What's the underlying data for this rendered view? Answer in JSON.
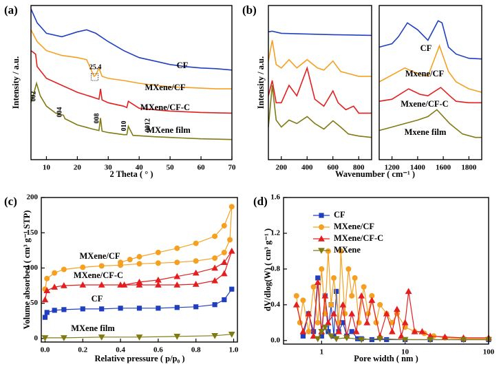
{
  "chart_data": [
    {
      "type": "line",
      "panel_label": "(a)",
      "xlabel": "2 Theta ( ° )",
      "ylabel": "Intensity / a.u.",
      "xlim": [
        5,
        70
      ],
      "xticks": [
        10,
        20,
        30,
        40,
        50,
        60,
        70
      ],
      "ylim": [
        0,
        222
      ],
      "series": [
        {
          "name": "CF",
          "color": "#1f3fbf",
          "x": [
            5,
            7,
            10,
            15,
            20,
            23,
            26,
            30,
            35,
            40,
            45,
            50,
            55,
            60,
            65,
            70
          ],
          "values": [
            217,
            197,
            182,
            177,
            184,
            187,
            182,
            170,
            157,
            147,
            142,
            137,
            134,
            132,
            131,
            129
          ]
        },
        {
          "name": "MXene/CF",
          "color": "#f5a020",
          "x": [
            5,
            7,
            10,
            15,
            20,
            23,
            25.4,
            26,
            27,
            28,
            30,
            35,
            40,
            45,
            50,
            55,
            60,
            65,
            70
          ],
          "values": [
            187,
            170,
            157,
            150,
            147,
            144,
            120,
            122,
            132,
            120,
            117,
            114,
            110,
            107,
            105,
            104,
            103,
            102,
            102
          ]
        },
        {
          "name": "MXene/CF-C",
          "color": "#e41e1e",
          "x": [
            5,
            6.5,
            7,
            10,
            15,
            20,
            25,
            27,
            27.5,
            28,
            30,
            35,
            36,
            36.5,
            40,
            45,
            50,
            60,
            70
          ],
          "values": [
            157,
            152,
            134,
            117,
            107,
            97,
            90,
            87,
            102,
            86,
            82,
            77,
            75,
            84,
            74,
            72,
            70,
            68,
            67
          ]
        },
        {
          "name": "MXene film",
          "color": "#7f7a12",
          "x": [
            5,
            6,
            6.8,
            8,
            10,
            13,
            15.5,
            16,
            20,
            25,
            27,
            27.5,
            28,
            30,
            35,
            36,
            36.5,
            38,
            45,
            50,
            60,
            70
          ],
          "values": [
            82,
            97,
            110,
            92,
            77,
            67,
            64,
            59,
            50,
            44,
            42,
            60,
            41,
            39,
            36,
            36,
            48,
            35,
            33,
            32,
            30,
            29
          ]
        }
      ],
      "annotations": [
        {
          "text": "002",
          "x": 7
        },
        {
          "text": "004",
          "x": 15.5
        },
        {
          "text": "008",
          "x": 27.5
        },
        {
          "text": "010",
          "x": 36.3
        },
        {
          "text": "0012",
          "x": 44
        },
        {
          "text": "25.4",
          "x": 25.4
        }
      ]
    },
    {
      "type": "line",
      "panel_label": "(b)",
      "xlabel": "Wavenumber ( cm⁻¹ )",
      "ylabel": "Intensity / a.u.",
      "panels": [
        {
          "xlim": [
            100,
            900
          ],
          "xticks": [
            200,
            400,
            600,
            800
          ],
          "ylim": [
            0,
            222
          ],
          "series": [
            {
              "color": "#1f3fbf",
              "x": [
                100,
                130,
                200,
                400,
                600,
                900
              ],
              "values": [
                184,
                185,
                182,
                181,
                180,
                179
              ]
            },
            {
              "color": "#f5a020",
              "x": [
                100,
                130,
                160,
                200,
                260,
                320,
                400,
                480,
                530,
                600,
                660,
                720,
                800,
                900
              ],
              "values": [
                142,
                172,
                137,
                132,
                144,
                132,
                144,
                132,
                129,
                142,
                127,
                124,
                120,
                120
              ]
            },
            {
              "color": "#e41e1e",
              "x": [
                100,
                130,
                160,
                200,
                260,
                320,
                400,
                460,
                530,
                600,
                640,
                700,
                760,
                800,
                900
              ],
              "values": [
                92,
                114,
                82,
                82,
                107,
                92,
                132,
                87,
                77,
                99,
                82,
                72,
                77,
                67,
                67
              ]
            },
            {
              "color": "#7f7a12",
              "x": [
                100,
                130,
                160,
                200,
                260,
                320,
                400,
                460,
                530,
                600,
                660,
                720,
                800,
                900
              ],
              "values": [
                47,
                107,
                57,
                47,
                57,
                52,
                62,
                52,
                44,
                56,
                47,
                37,
                34,
                32
              ]
            }
          ]
        },
        {
          "xlim": [
            1100,
            1900
          ],
          "xticks": [
            1200,
            1400,
            1600,
            1800
          ],
          "ylim": [
            0,
            222
          ],
          "series": [
            {
              "name": "CF",
              "color": "#1f3fbf",
              "x": [
                1100,
                1200,
                1250,
                1320,
                1400,
                1480,
                1560,
                1590,
                1640,
                1700,
                1800,
                1900
              ],
              "values": [
                162,
                167,
                177,
                197,
                187,
                172,
                200,
                197,
                162,
                152,
                146,
                145
              ]
            },
            {
              "name": "Mxene/CF",
              "color": "#f5a020",
              "x": [
                1100,
                1200,
                1300,
                1400,
                1480,
                1570,
                1640,
                1700,
                1800,
                1900
              ],
              "values": [
                112,
                122,
                132,
                124,
                120,
                164,
                127,
                112,
                102,
                97
              ]
            },
            {
              "name": "Mxene/CF-C",
              "color": "#e41e1e",
              "x": [
                1100,
                1200,
                1330,
                1420,
                1480,
                1580,
                1650,
                1700,
                1800,
                1900
              ],
              "values": [
                84,
                87,
                102,
                94,
                92,
                104,
                92,
                84,
                82,
                82
              ]
            },
            {
              "name": "Mxene film",
              "color": "#7f7a12",
              "x": [
                1100,
                1200,
                1300,
                1400,
                1480,
                1550,
                1600,
                1650,
                1750,
                1850,
                1900
              ],
              "values": [
                42,
                47,
                52,
                57,
                62,
                72,
                62,
                52,
                37,
                32,
                32
              ]
            }
          ]
        }
      ]
    },
    {
      "type": "line",
      "panel_label": "(c)",
      "xlabel": "Relative pressure ( p/p₀ )",
      "ylabel": "Volume absorbed ( cm³ g⁻¹ STP)",
      "xlim": [
        -0.02,
        1.02
      ],
      "xticks": [
        {
          "value": 0,
          "label": "0.0"
        },
        0.2,
        0.4,
        0.6,
        0.8,
        {
          "value": 1,
          "label": "1.0"
        }
      ],
      "ylim": [
        -5,
        200
      ],
      "yticks": [
        0,
        50,
        100,
        150,
        200
      ],
      "series": [
        {
          "name": "MXene/CF",
          "color": "#f5a020",
          "marker": "circle",
          "x": [
            0,
            0.01,
            0.05,
            0.1,
            0.2,
            0.3,
            0.4,
            0.5,
            0.6,
            0.7,
            0.8,
            0.9,
            0.95,
            0.98,
            0.99,
            0.95,
            0.9,
            0.8,
            0.7,
            0.6,
            0.5,
            0.45,
            0.4
          ],
          "values": [
            70,
            85,
            93,
            98,
            101,
            103,
            104,
            106,
            107,
            108,
            110,
            114,
            122,
            140,
            187,
            160,
            145,
            135,
            128,
            122,
            116,
            112,
            108
          ]
        },
        {
          "name": "MXene/CF-C",
          "color": "#e41e1e",
          "marker": "triangle",
          "x": [
            0,
            0.01,
            0.05,
            0.1,
            0.2,
            0.3,
            0.4,
            0.5,
            0.6,
            0.7,
            0.8,
            0.9,
            0.95,
            0.99,
            0.95,
            0.9,
            0.8,
            0.7,
            0.6,
            0.5,
            0.42
          ],
          "values": [
            55,
            68,
            73,
            75,
            76,
            76,
            76,
            76,
            76,
            76,
            77,
            82,
            92,
            124,
            108,
            100,
            93,
            88,
            83,
            80,
            76
          ]
        },
        {
          "name": "CF",
          "color": "#1f3fbf",
          "marker": "square",
          "x": [
            0,
            0.01,
            0.05,
            0.1,
            0.2,
            0.3,
            0.4,
            0.5,
            0.6,
            0.7,
            0.8,
            0.9,
            0.95,
            0.99
          ],
          "values": [
            30,
            37,
            40,
            41,
            42,
            42,
            43,
            43,
            43,
            44,
            45,
            48,
            55,
            70
          ]
        },
        {
          "name": "MXene film",
          "color": "#7f7a12",
          "marker": "triangle-down",
          "x": [
            0,
            0.1,
            0.3,
            0.5,
            0.7,
            0.9,
            0.99
          ],
          "values": [
            1,
            1,
            2,
            2,
            3,
            4,
            6
          ]
        }
      ]
    },
    {
      "type": "line",
      "panel_label": "(d)",
      "xlabel": "Pore width ( nm )",
      "ylabel": "dV/dlog(W) ( cm³ g⁻¹ )",
      "xlim": [
        0.35,
        100
      ],
      "xscale": "log",
      "xticks": [
        1,
        10,
        100
      ],
      "ylim": [
        -0.04,
        1.6
      ],
      "yticks": [
        {
          "value": 0,
          "label": "0.0"
        },
        0.4,
        0.8,
        1.2,
        1.6
      ],
      "legend": "upper center",
      "series": [
        {
          "name": "CF",
          "color": "#1f3fbf",
          "marker": "square",
          "x": [
            0.6,
            0.7,
            0.8,
            0.9,
            1.0,
            1.1,
            1.2,
            1.3,
            1.4,
            1.5,
            1.6,
            1.8,
            2.0,
            2.3,
            2.7,
            3,
            4,
            6,
            10,
            20,
            50,
            100
          ],
          "values": [
            0.05,
            0.3,
            0.1,
            0.7,
            0.05,
            0.5,
            0.1,
            0.4,
            0.05,
            0.55,
            0.1,
            0.2,
            0.05,
            0.1,
            0.02,
            0.02,
            0.01,
            0.01,
            0.01,
            0.01,
            0.01,
            0.01
          ]
        },
        {
          "name": "MXene/CF",
          "color": "#f5a020",
          "marker": "circle",
          "x": [
            0.5,
            0.55,
            0.6,
            0.7,
            0.8,
            0.9,
            1.0,
            1.1,
            1.2,
            1.3,
            1.4,
            1.6,
            1.7,
            1.9,
            2.1,
            2.3,
            2.5,
            2.8,
            3.2,
            3.6,
            4,
            4.5,
            5,
            6,
            7,
            8,
            10,
            13,
            17,
            22,
            30,
            50,
            100
          ],
          "values": [
            0.5,
            0.2,
            0.45,
            0.1,
            0.6,
            0.2,
            0.8,
            0.3,
            1.0,
            0.4,
            0.7,
            0.2,
            1.0,
            0.3,
            0.8,
            0.5,
            0.7,
            0.2,
            0.6,
            0.3,
            0.5,
            0.2,
            0.4,
            0.3,
            0.2,
            0.3,
            0.15,
            0.1,
            0.08,
            0.05,
            0.03,
            0.02,
            0.02
          ]
        },
        {
          "name": "MXene/CF-C",
          "color": "#e41e1e",
          "marker": "triangle",
          "x": [
            0.5,
            0.6,
            0.7,
            0.8,
            0.9,
            1.0,
            1.1,
            1.2,
            1.4,
            1.6,
            1.8,
            2.0,
            2.3,
            2.6,
            3,
            3.5,
            4,
            5,
            6,
            7,
            8,
            9,
            10,
            11,
            13,
            16,
            20,
            30,
            50,
            100
          ],
          "values": [
            0.4,
            0.1,
            0.3,
            0.05,
            0.65,
            0.1,
            0.5,
            0.2,
            0.3,
            0.1,
            0.4,
            0.05,
            0.3,
            0.1,
            0.5,
            0.2,
            0.45,
            0.05,
            0.3,
            0.1,
            0.35,
            0.05,
            0.2,
            0.55,
            0.1,
            0.1,
            0.05,
            0.04,
            0.03,
            0.03
          ]
        },
        {
          "name": "MXene",
          "color": "#7f7a12",
          "marker": "triangle-down",
          "x": [
            0.9,
            1.0,
            1.1,
            1.3,
            1.5,
            2,
            3,
            5,
            10,
            20,
            50,
            100
          ],
          "values": [
            0.02,
            0.1,
            0.15,
            0.05,
            0.02,
            0.03,
            0.01,
            0.02,
            0.01,
            0.01,
            0.01,
            0.01
          ]
        }
      ]
    }
  ]
}
